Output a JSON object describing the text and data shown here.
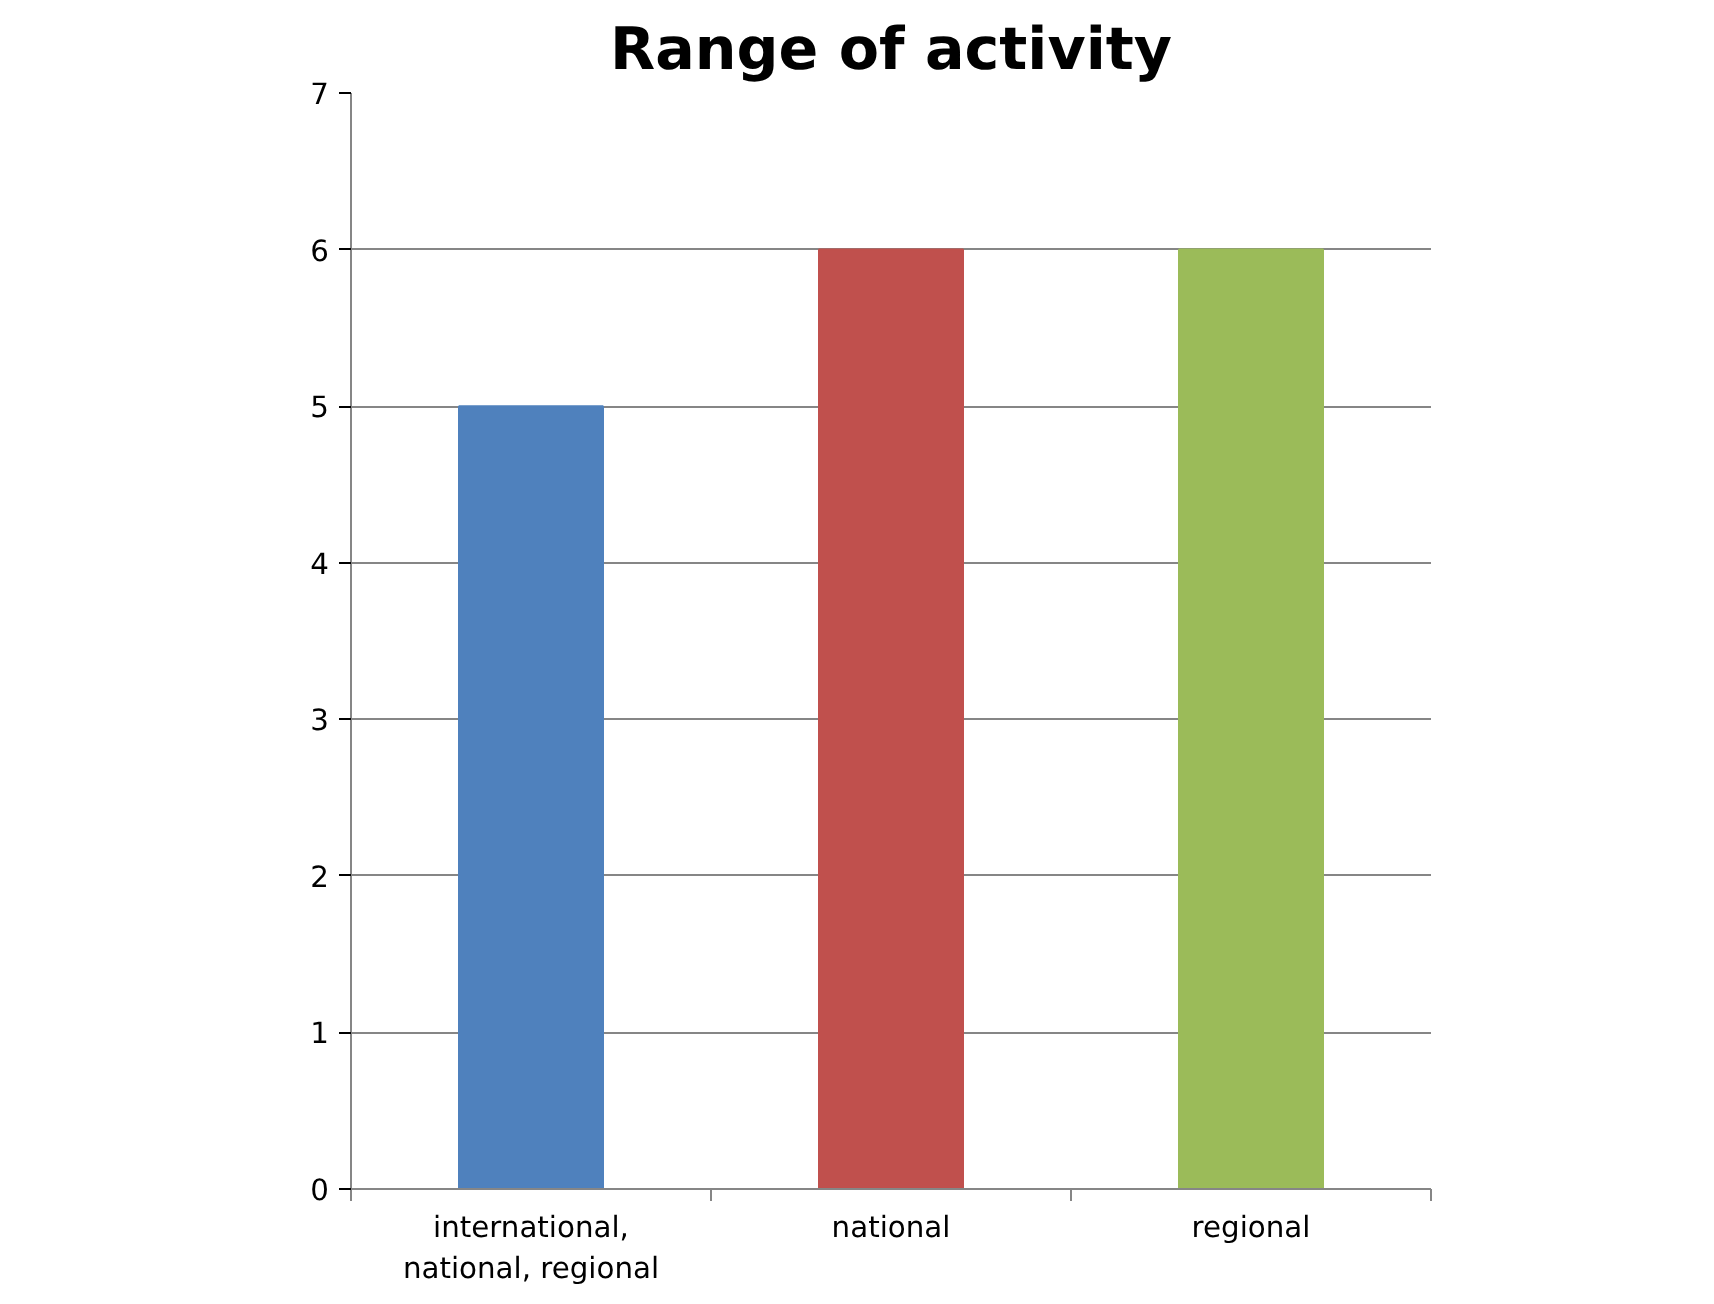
{
  "chart_data": {
    "type": "bar",
    "title": "Range of activity",
    "categories": [
      "international, national, regional",
      "national",
      "regional"
    ],
    "values": [
      5,
      6,
      6
    ],
    "colors": [
      "#4f81bd",
      "#c0504d",
      "#9bbb59"
    ],
    "ylim": [
      0,
      7
    ],
    "yticks": [
      0,
      1,
      2,
      3,
      4,
      5,
      6,
      7
    ],
    "grid": "y"
  }
}
